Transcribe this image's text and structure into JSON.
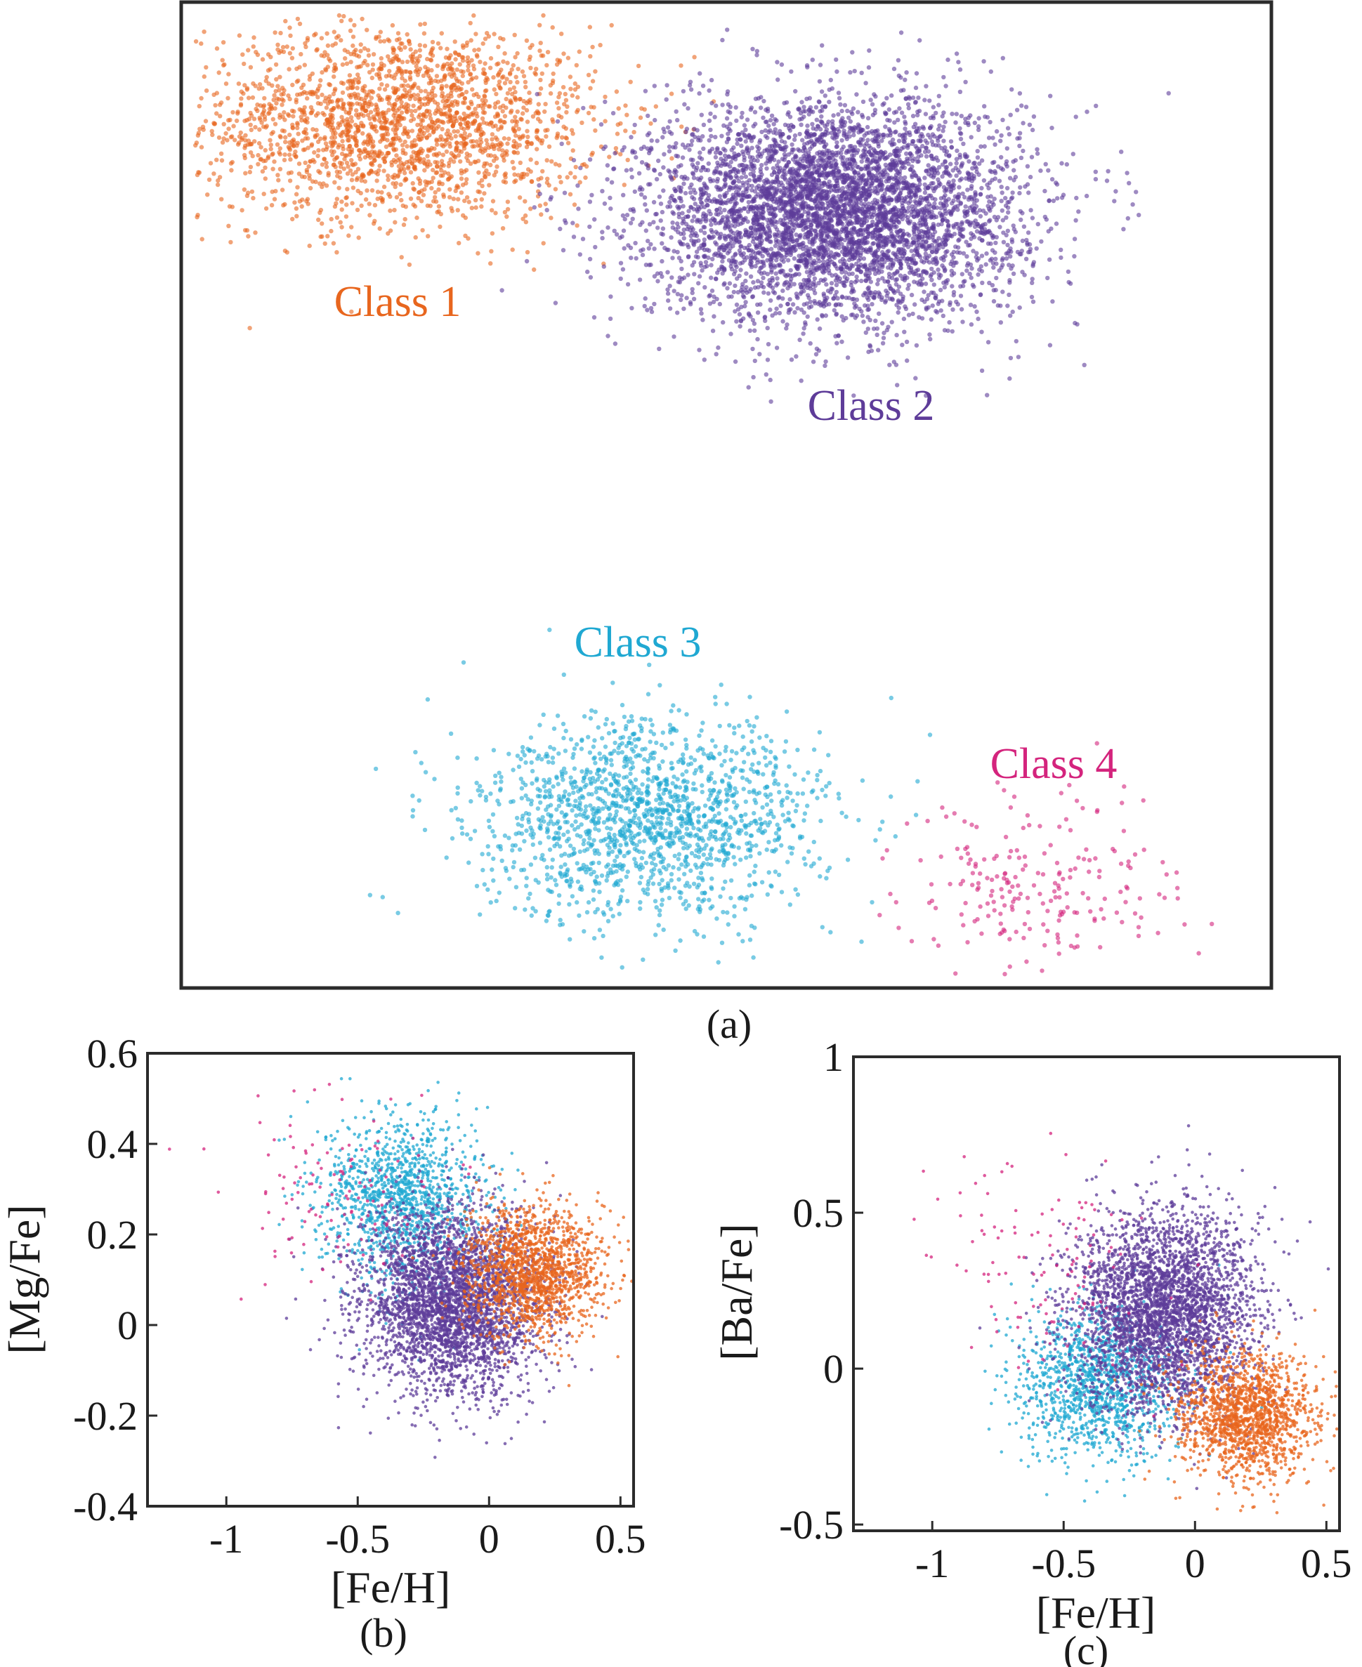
{
  "colors": {
    "class1": "#E8661E",
    "class2": "#5E3C99",
    "class3": "#1FA8D2",
    "class4": "#D4247D",
    "axis": "#2b2b2b"
  },
  "panels": {
    "a": {
      "caption": "(a)",
      "class_labels": [
        "Class 1",
        "Class 2",
        "Class 3",
        "Class 4"
      ]
    },
    "b": {
      "caption": "(b)",
      "xlabel": "[Fe/H]",
      "ylabel": "[Mg/Fe]"
    },
    "c": {
      "caption": "(c)",
      "xlabel": "[Fe/H]",
      "ylabel": "[Ba/Fe]"
    }
  },
  "chart_data": [
    {
      "type": "scatter",
      "panel": "a",
      "description_axes": "embedding space (no axes ticks)",
      "series": [
        {
          "name": "Class 1",
          "center": [
            0.2,
            0.88
          ],
          "spread": [
            0.09,
            0.05
          ],
          "n": 2200
        },
        {
          "name": "Class 2",
          "center": [
            0.6,
            0.79
          ],
          "spread": [
            0.085,
            0.055
          ],
          "n": 5000
        },
        {
          "name": "Class 3",
          "center": [
            0.43,
            0.17
          ],
          "spread": [
            0.08,
            0.05
          ],
          "n": 1600
        },
        {
          "name": "Class 4",
          "center": [
            0.79,
            0.1
          ],
          "spread": [
            0.065,
            0.045
          ],
          "n": 220
        }
      ]
    },
    {
      "type": "scatter",
      "panel": "b",
      "xlabel": "[Fe/H]",
      "ylabel": "[Mg/Fe]",
      "xlim": [
        -1.3,
        0.55
      ],
      "ylim": [
        -0.4,
        0.6
      ],
      "xticks": [
        "-1",
        "-0.5",
        "0",
        "0.5"
      ],
      "yticks": [
        "-0.4",
        "-0.2",
        "0",
        "0.2",
        "0.4",
        "0.6"
      ],
      "series": [
        {
          "name": "Class 1",
          "center": [
            0.17,
            0.12
          ],
          "spread": [
            0.13,
            0.07
          ],
          "n": 1500
        },
        {
          "name": "Class 2",
          "center": [
            -0.14,
            0.05
          ],
          "spread": [
            0.17,
            0.1
          ],
          "n": 3500
        },
        {
          "name": "Class 3",
          "center": [
            -0.33,
            0.28
          ],
          "spread": [
            0.15,
            0.09
          ],
          "n": 1300
        },
        {
          "name": "Class 4",
          "center": [
            -0.55,
            0.3
          ],
          "spread": [
            0.22,
            0.1
          ],
          "n": 120
        }
      ]
    },
    {
      "type": "scatter",
      "panel": "c",
      "xlabel": "[Fe/H]",
      "ylabel": "[Ba/Fe]",
      "xlim": [
        -1.3,
        0.55
      ],
      "ylim": [
        -0.52,
        1.0
      ],
      "xticks": [
        "-1",
        "-0.5",
        "0",
        "0.5"
      ],
      "yticks": [
        "-0.5",
        "0",
        "0.5",
        "1"
      ],
      "series": [
        {
          "name": "Class 1",
          "center": [
            0.2,
            -0.15
          ],
          "spread": [
            0.13,
            0.1
          ],
          "n": 1500
        },
        {
          "name": "Class 2",
          "center": [
            -0.12,
            0.18
          ],
          "spread": [
            0.17,
            0.16
          ],
          "n": 3500
        },
        {
          "name": "Class 3",
          "center": [
            -0.38,
            -0.05
          ],
          "spread": [
            0.15,
            0.12
          ],
          "n": 1300
        },
        {
          "name": "Class 4",
          "center": [
            -0.55,
            0.35
          ],
          "spread": [
            0.22,
            0.18
          ],
          "n": 120
        }
      ]
    }
  ]
}
